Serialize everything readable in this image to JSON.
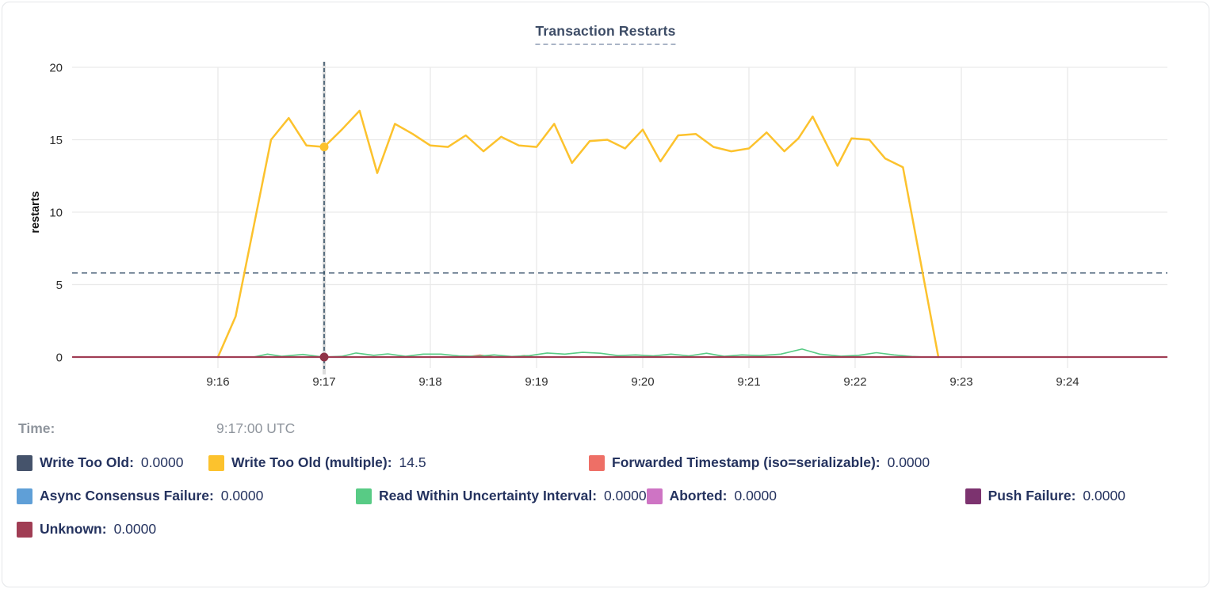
{
  "card": {
    "title": "Transaction Restarts"
  },
  "tooltip": {
    "label": "Time:",
    "value": "9:17:00 UTC"
  },
  "legend": {
    "items": [
      {
        "label": "Write Too Old:",
        "value": "0.0000",
        "color": "#45536b"
      },
      {
        "label": "Write Too Old (multiple):",
        "value": "14.5",
        "color": "#fcc22d"
      },
      {
        "label": "Forwarded Timestamp (iso=serializable):",
        "value": "0.0000",
        "color": "#ee6f66"
      },
      {
        "label": "Async Consensus Failure:",
        "value": "0.0000",
        "color": "#5f9fd7"
      },
      {
        "label": "Read Within Uncertainty Interval:",
        "value": "0.0000",
        "color": "#58cb85"
      },
      {
        "label": "Aborted:",
        "value": "0.0000",
        "color": "#ce74c4"
      },
      {
        "label": "Push Failure:",
        "value": "0.0000",
        "color": "#7c336f"
      },
      {
        "label": "Unknown:",
        "value": "0.0000",
        "color": "#a03d54"
      }
    ]
  },
  "chart_data": {
    "type": "line",
    "title": "Transaction Restarts",
    "xlabel": "",
    "ylabel": "restarts",
    "ylim": [
      0,
      20
    ],
    "yticks": [
      0,
      5,
      10,
      15,
      20
    ],
    "xticks": [
      {
        "label": "9:16",
        "t": 0
      },
      {
        "label": "9:17",
        "t": 60
      },
      {
        "label": "9:18",
        "t": 120
      },
      {
        "label": "9:19",
        "t": 180
      },
      {
        "label": "9:20",
        "t": 240
      },
      {
        "label": "9:21",
        "t": 300
      },
      {
        "label": "9:22",
        "t": 360
      },
      {
        "label": "9:23",
        "t": 420
      },
      {
        "label": "9:24",
        "t": 480
      }
    ],
    "x_domain_seconds_from_916": [
      -82,
      536
    ],
    "grid": true,
    "legend_position": "bottom",
    "style": {
      "grid": "#e9e9e9",
      "axis_text": "#2e2e2e"
    },
    "avg_line": {
      "value": 5.8,
      "color": "#5c7186"
    },
    "crosshair": {
      "t": 60,
      "time_text": "9:17:00 UTC",
      "color": "#2e4d63",
      "band_color": "#dcdcdc",
      "markers": [
        {
          "series": "Write Too Old (multiple)",
          "value": 14.5,
          "color": "#fcc22d"
        },
        {
          "series": "Unknown",
          "value": 0,
          "color": "#903348"
        }
      ]
    },
    "series": [
      {
        "name": "Write Too Old",
        "color": "#45536b",
        "width": 1.5,
        "points": [
          [
            -82,
            0
          ],
          [
            536,
            0
          ]
        ]
      },
      {
        "name": "Write Too Old (multiple)",
        "color": "#fcc22d",
        "width": 2.5,
        "points": [
          [
            0,
            0
          ],
          [
            10,
            2.8
          ],
          [
            20,
            8.9
          ],
          [
            30,
            15.0
          ],
          [
            40,
            16.5
          ],
          [
            50,
            14.6
          ],
          [
            60,
            14.5
          ],
          [
            70,
            15.7
          ],
          [
            80,
            17.0
          ],
          [
            90,
            12.7
          ],
          [
            100,
            16.1
          ],
          [
            110,
            15.4
          ],
          [
            120,
            14.6
          ],
          [
            130,
            14.5
          ],
          [
            140,
            15.3
          ],
          [
            150,
            14.2
          ],
          [
            160,
            15.2
          ],
          [
            170,
            14.6
          ],
          [
            180,
            14.5
          ],
          [
            190,
            16.1
          ],
          [
            200,
            13.4
          ],
          [
            210,
            14.9
          ],
          [
            220,
            15.0
          ],
          [
            230,
            14.4
          ],
          [
            240,
            15.7
          ],
          [
            250,
            13.5
          ],
          [
            260,
            15.3
          ],
          [
            270,
            15.4
          ],
          [
            280,
            14.5
          ],
          [
            290,
            14.2
          ],
          [
            300,
            14.4
          ],
          [
            310,
            15.5
          ],
          [
            320,
            14.2
          ],
          [
            328,
            15.1
          ],
          [
            336,
            16.6
          ],
          [
            350,
            13.2
          ],
          [
            358,
            15.1
          ],
          [
            368,
            15.0
          ],
          [
            377,
            13.7
          ],
          [
            387,
            13.1
          ],
          [
            407,
            0
          ]
        ]
      },
      {
        "name": "Forwarded Timestamp (iso=serializable)",
        "color": "#ee6f66",
        "width": 2,
        "points": [
          [
            -82,
            0
          ],
          [
            140,
            0
          ],
          [
            148,
            0.12
          ],
          [
            156,
            0
          ],
          [
            168,
            0
          ],
          [
            173,
            0.09
          ],
          [
            178,
            0
          ],
          [
            536,
            0
          ]
        ]
      },
      {
        "name": "Async Consensus Failure",
        "color": "#5f9fd7",
        "width": 1.5,
        "points": [
          [
            -82,
            0
          ],
          [
            536,
            0
          ]
        ]
      },
      {
        "name": "Read Within Uncertainty Interval",
        "color": "#58cb85",
        "width": 1.6,
        "points": [
          [
            -82,
            0
          ],
          [
            20,
            0
          ],
          [
            28,
            0.2
          ],
          [
            36,
            0.05
          ],
          [
            48,
            0.18
          ],
          [
            58,
            0.02
          ],
          [
            60,
            0
          ],
          [
            70,
            0.05
          ],
          [
            78,
            0.28
          ],
          [
            88,
            0.12
          ],
          [
            96,
            0.22
          ],
          [
            106,
            0.05
          ],
          [
            116,
            0.2
          ],
          [
            126,
            0.2
          ],
          [
            136,
            0.08
          ],
          [
            146,
            0.05
          ],
          [
            156,
            0.15
          ],
          [
            166,
            0.04
          ],
          [
            176,
            0.1
          ],
          [
            186,
            0.28
          ],
          [
            196,
            0.2
          ],
          [
            206,
            0.32
          ],
          [
            216,
            0.26
          ],
          [
            226,
            0.1
          ],
          [
            236,
            0.15
          ],
          [
            246,
            0.08
          ],
          [
            256,
            0.2
          ],
          [
            266,
            0.08
          ],
          [
            276,
            0.26
          ],
          [
            286,
            0.05
          ],
          [
            296,
            0.15
          ],
          [
            306,
            0.1
          ],
          [
            318,
            0.2
          ],
          [
            330,
            0.55
          ],
          [
            340,
            0.2
          ],
          [
            352,
            0.06
          ],
          [
            362,
            0.12
          ],
          [
            372,
            0.3
          ],
          [
            382,
            0.15
          ],
          [
            392,
            0.04
          ],
          [
            400,
            0
          ],
          [
            536,
            0
          ]
        ]
      },
      {
        "name": "Aborted",
        "color": "#ce74c4",
        "width": 1.5,
        "points": [
          [
            -82,
            0
          ],
          [
            536,
            0
          ]
        ]
      },
      {
        "name": "Push Failure",
        "color": "#7c336f",
        "width": 1.5,
        "points": [
          [
            -82,
            0
          ],
          [
            536,
            0
          ]
        ]
      },
      {
        "name": "Unknown",
        "color": "#a03d54",
        "width": 2.2,
        "points": [
          [
            -82,
            0
          ],
          [
            536,
            0
          ]
        ]
      }
    ]
  }
}
